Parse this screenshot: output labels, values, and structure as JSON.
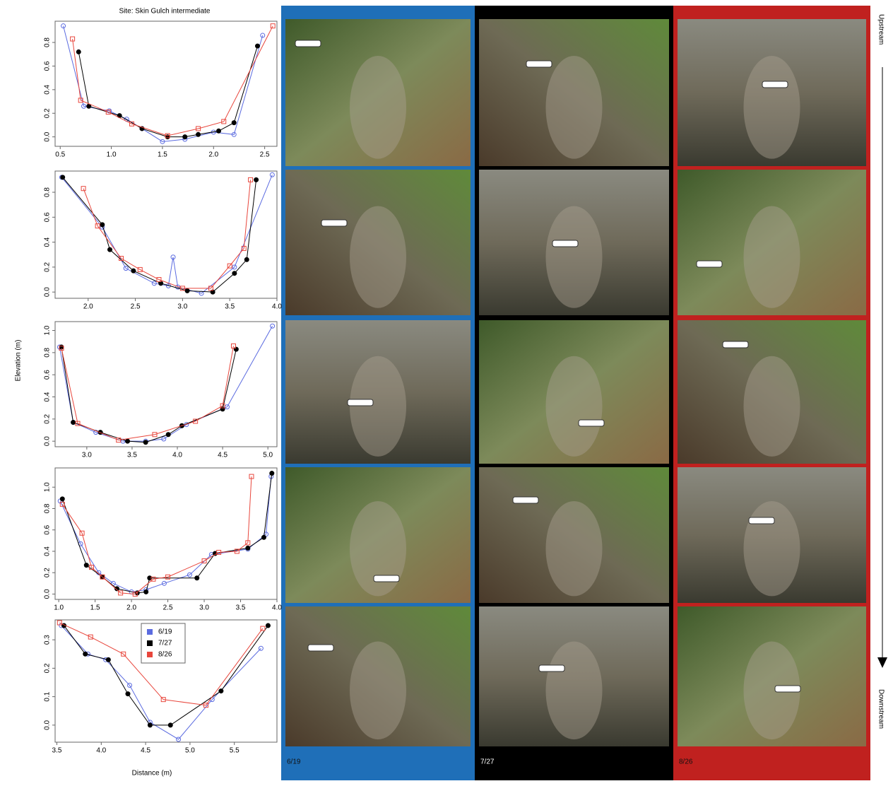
{
  "chart_data": [
    {
      "type": "line",
      "title": "Site: Skin Gulch intermediate",
      "xlim": [
        0.45,
        2.62
      ],
      "xticks": [
        0.5,
        {
          "value": 1,
          "label": "1.0"
        },
        1.5,
        {
          "value": 2,
          "label": "2.0"
        },
        2.5
      ],
      "ylim": [
        -0.08,
        0.98
      ],
      "yticks": [
        {
          "value": 0,
          "label": "0.0"
        },
        0.2,
        0.4,
        0.6,
        0.8
      ],
      "series": [
        {
          "color": "#5b6be0",
          "marker": "circle-open",
          "x": [
            0.53,
            0.73,
            0.98,
            1.15,
            1.3,
            1.5,
            1.72,
            2.0,
            2.2,
            2.48
          ],
          "values": [
            0.94,
            0.26,
            0.22,
            0.15,
            0.07,
            -0.04,
            -0.02,
            0.04,
            0.02,
            0.86
          ]
        },
        {
          "color": "#000000",
          "marker": "circle-filled",
          "x": [
            0.68,
            0.78,
            1.08,
            1.3,
            1.55,
            1.72,
            1.85,
            2.05,
            2.2,
            2.43
          ],
          "values": [
            0.72,
            0.26,
            0.18,
            0.07,
            0.0,
            0.0,
            0.02,
            0.05,
            0.12,
            0.77
          ]
        },
        {
          "color": "#e8463c",
          "marker": "square-open",
          "x": [
            0.62,
            0.7,
            0.97,
            1.2,
            1.55,
            1.85,
            2.1,
            2.58
          ],
          "values": [
            0.83,
            0.31,
            0.21,
            0.11,
            0.01,
            0.07,
            0.13,
            0.94
          ]
        }
      ]
    },
    {
      "type": "line",
      "xlim": [
        1.65,
        4.0
      ],
      "xticks": [
        {
          "value": 2,
          "label": "2.0"
        },
        2.5,
        {
          "value": 3,
          "label": "3.0"
        },
        3.5,
        {
          "value": 4,
          "label": "4.0"
        }
      ],
      "ylim": [
        -0.05,
        0.97
      ],
      "yticks": [
        {
          "value": 0,
          "label": "0.0"
        },
        0.2,
        0.4,
        0.6,
        0.8
      ],
      "series": [
        {
          "color": "#5b6be0",
          "marker": "circle-open",
          "x": [
            1.72,
            2.15,
            2.4,
            2.7,
            2.85,
            2.9,
            2.95,
            3.2,
            3.55,
            3.95
          ],
          "values": [
            0.92,
            0.52,
            0.19,
            0.07,
            0.05,
            0.28,
            0.04,
            -0.01,
            0.2,
            0.94
          ]
        },
        {
          "color": "#000000",
          "marker": "circle-filled",
          "x": [
            1.73,
            2.15,
            2.23,
            2.48,
            2.77,
            3.05,
            3.32,
            3.55,
            3.68,
            3.78
          ],
          "values": [
            0.92,
            0.54,
            0.34,
            0.17,
            0.07,
            0.01,
            0.0,
            0.15,
            0.26,
            0.9
          ]
        },
        {
          "color": "#e8463c",
          "marker": "square-open",
          "x": [
            1.95,
            2.1,
            2.35,
            2.55,
            2.75,
            3.0,
            3.3,
            3.5,
            3.65,
            3.72
          ],
          "values": [
            0.83,
            0.53,
            0.27,
            0.18,
            0.1,
            0.03,
            0.03,
            0.21,
            0.35,
            0.9
          ]
        }
      ]
    },
    {
      "type": "line",
      "ylabel": "Elevation (m)",
      "xlim": [
        2.65,
        5.1
      ],
      "xticks": [
        {
          "value": 3,
          "label": "3.0"
        },
        3.5,
        {
          "value": 4,
          "label": "4.0"
        },
        4.5,
        {
          "value": 5,
          "label": "5.0"
        }
      ],
      "ylim": [
        -0.05,
        1.08
      ],
      "yticks": [
        {
          "value": 0,
          "label": "0.0"
        },
        0.2,
        0.4,
        0.6,
        0.8,
        {
          "value": 1,
          "label": "1.0"
        }
      ],
      "series": [
        {
          "color": "#5b6be0",
          "marker": "circle-open",
          "x": [
            2.7,
            2.85,
            3.1,
            3.4,
            3.65,
            3.85,
            4.1,
            4.55,
            5.05
          ],
          "values": [
            0.85,
            0.17,
            0.08,
            0.0,
            0.0,
            0.02,
            0.15,
            0.31,
            1.04
          ]
        },
        {
          "color": "#000000",
          "marker": "circle-filled",
          "x": [
            2.72,
            2.85,
            3.15,
            3.45,
            3.65,
            3.9,
            4.05,
            4.5,
            4.65
          ],
          "values": [
            0.85,
            0.17,
            0.08,
            0.0,
            -0.01,
            0.06,
            0.14,
            0.29,
            0.83
          ]
        },
        {
          "color": "#e8463c",
          "marker": "square-open",
          "x": [
            2.72,
            2.9,
            3.35,
            3.75,
            4.2,
            4.5,
            4.62
          ],
          "values": [
            0.84,
            0.16,
            0.01,
            0.06,
            0.18,
            0.32,
            0.86
          ]
        }
      ]
    },
    {
      "type": "line",
      "xlim": [
        0.95,
        4.0
      ],
      "xticks": [
        {
          "value": 1,
          "label": "1.0"
        },
        1.5,
        {
          "value": 2,
          "label": "2.0"
        },
        2.5,
        {
          "value": 3,
          "label": "3.0"
        },
        3.5,
        {
          "value": 4,
          "label": "4.0"
        }
      ],
      "ylim": [
        -0.05,
        1.18
      ],
      "yticks": [
        {
          "value": 0,
          "label": "0.0"
        },
        0.2,
        0.4,
        0.6,
        0.8,
        {
          "value": 1,
          "label": "1.0"
        }
      ],
      "series": [
        {
          "color": "#5b6be0",
          "marker": "circle-open",
          "x": [
            1.02,
            1.3,
            1.55,
            1.75,
            2.0,
            2.2,
            2.45,
            2.8,
            3.1,
            3.6,
            3.85,
            3.92
          ],
          "values": [
            0.87,
            0.47,
            0.2,
            0.1,
            0.02,
            0.04,
            0.1,
            0.18,
            0.37,
            0.42,
            0.56,
            1.1
          ]
        },
        {
          "color": "#000000",
          "marker": "circle-filled",
          "x": [
            1.05,
            1.38,
            1.6,
            1.8,
            2.08,
            2.2,
            2.25,
            2.9,
            3.15,
            3.6,
            3.82,
            3.93
          ],
          "values": [
            0.89,
            0.27,
            0.16,
            0.05,
            0.01,
            0.02,
            0.15,
            0.15,
            0.38,
            0.43,
            0.53,
            1.13
          ]
        },
        {
          "color": "#e8463c",
          "marker": "square-open",
          "x": [
            1.05,
            1.32,
            1.45,
            1.6,
            1.85,
            2.05,
            2.3,
            2.5,
            3.0,
            3.2,
            3.45,
            3.6,
            3.65
          ],
          "values": [
            0.84,
            0.57,
            0.25,
            0.16,
            0.01,
            0.0,
            0.14,
            0.16,
            0.31,
            0.39,
            0.4,
            0.48,
            1.1
          ]
        }
      ]
    },
    {
      "type": "line",
      "xlabel": "Distance (m)",
      "legend": "top-center",
      "xlim": [
        3.48,
        5.98
      ],
      "xticks": [
        3.5,
        {
          "value": 4,
          "label": "4.0"
        },
        4.5,
        {
          "value": 5,
          "label": "5.0"
        },
        5.5
      ],
      "ylim": [
        -0.06,
        0.37
      ],
      "yticks": [
        {
          "value": 0,
          "label": "0.0"
        },
        0.1,
        0.2,
        0.3
      ],
      "series": [
        {
          "name": "6/19",
          "color": "#5b6be0",
          "marker": "circle-open",
          "x": [
            3.55,
            3.85,
            4.05,
            4.32,
            4.55,
            4.87,
            5.25,
            5.8
          ],
          "values": [
            0.35,
            0.25,
            0.23,
            0.14,
            0.01,
            -0.05,
            0.09,
            0.27
          ]
        },
        {
          "name": "7/27",
          "color": "#000000",
          "marker": "circle-filled",
          "x": [
            3.58,
            3.82,
            4.08,
            4.3,
            4.55,
            4.78,
            5.35,
            5.88
          ],
          "values": [
            0.35,
            0.25,
            0.23,
            0.11,
            0.0,
            0.0,
            0.12,
            0.35
          ]
        },
        {
          "name": "8/26",
          "color": "#e8463c",
          "marker": "square-open",
          "x": [
            3.53,
            3.88,
            4.25,
            4.7,
            5.18,
            5.82
          ],
          "values": [
            0.36,
            0.31,
            0.25,
            0.09,
            0.07,
            0.34
          ]
        }
      ]
    }
  ],
  "photo_panels": {
    "columns": [
      {
        "label": "6/19",
        "color": "#1f6fb8"
      },
      {
        "label": "7/27",
        "color": "#000000"
      },
      {
        "label": "8/26",
        "color": "#c0211f"
      }
    ],
    "upstream": "Upstream",
    "downstream": "Downstream"
  }
}
